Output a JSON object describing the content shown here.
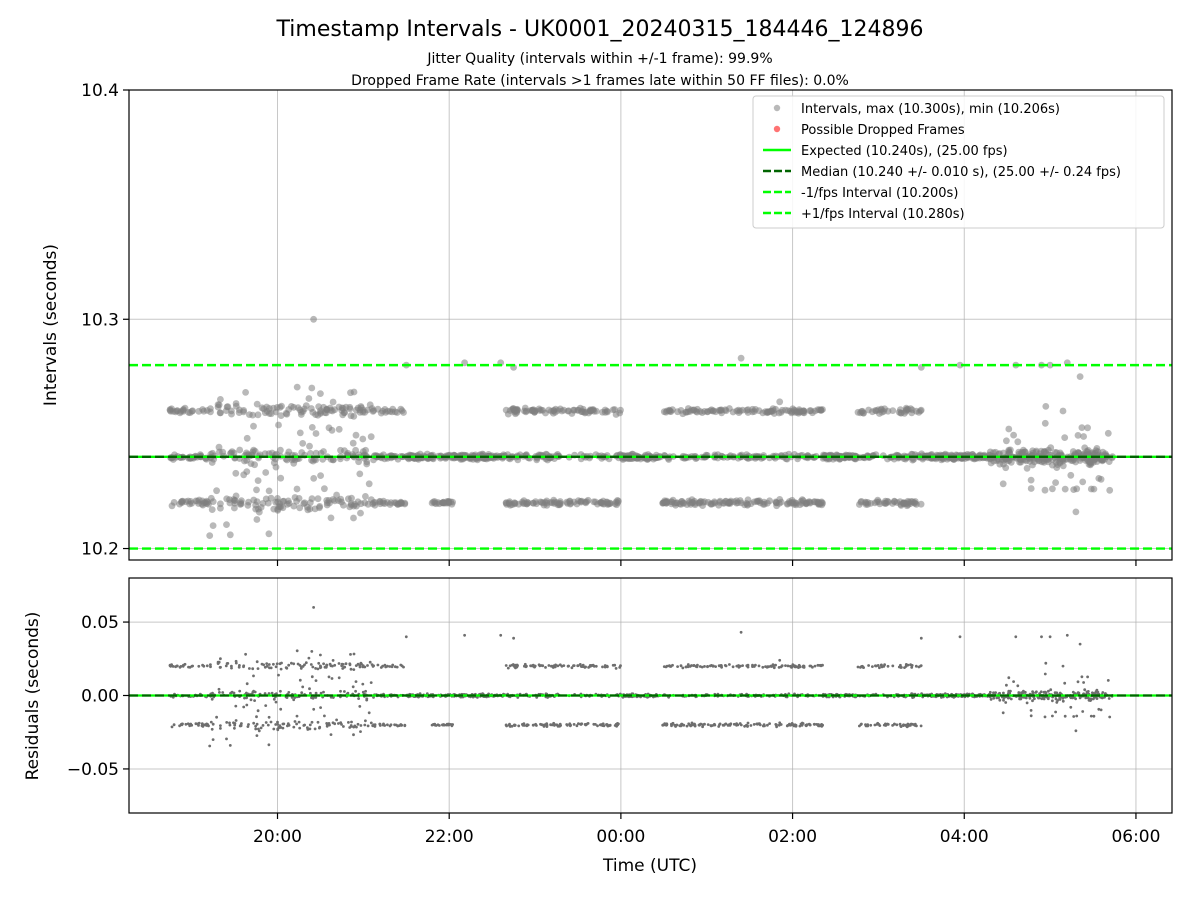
{
  "chart_data": {
    "type": "scatter",
    "title": "Timestamp Intervals - UK0001_20240315_184446_124896",
    "subtitle_lines": [
      "Jitter Quality (intervals within +/-1 frame): 99.9%",
      "Dropped Frame Rate (intervals >1 frames late within 50 FF files): 0.0%"
    ],
    "top_panel": {
      "ylabel": "Intervals (seconds)",
      "ylim": [
        10.195,
        10.4
      ],
      "yticks": [
        10.2,
        10.3,
        10.4
      ],
      "ytick_labels": [
        "10.2",
        "10.3",
        "10.4"
      ],
      "grid": true,
      "reference_lines": [
        {
          "name": "expected",
          "y": 10.24,
          "color": "#00ff00",
          "style": "solid"
        },
        {
          "name": "median",
          "y": 10.24,
          "color": "#006400",
          "style": "dashed"
        },
        {
          "name": "minus-one-fps",
          "y": 10.2,
          "color": "#00ff00",
          "style": "dashed"
        },
        {
          "name": "plus-one-fps",
          "y": 10.28,
          "color": "#00ff00",
          "style": "dashed"
        }
      ],
      "legend": {
        "placement": "top-right",
        "entries": [
          {
            "label": "Intervals, max (10.300s), min (10.206s)",
            "kind": "marker",
            "color": "#808080"
          },
          {
            "label": "Possible Dropped Frames",
            "kind": "marker",
            "color": "#ff0000"
          },
          {
            "label": "Expected (10.240s), (25.00 fps)",
            "kind": "line",
            "color": "#00ff00",
            "dash": false
          },
          {
            "label": "Median (10.240 +/- 0.010 s), (25.00 +/- 0.24 fps)",
            "kind": "line",
            "color": "#006400",
            "dash": true
          },
          {
            "label": "-1/fps Interval (10.200s)",
            "kind": "line",
            "color": "#00ff00",
            "dash": true
          },
          {
            "label": "+1/fps Interval (10.280s)",
            "kind": "line",
            "color": "#00ff00",
            "dash": true
          }
        ]
      }
    },
    "bottom_panel": {
      "ylabel": "Residuals (seconds)",
      "ylim": [
        -0.08,
        0.08
      ],
      "yticks": [
        0.05,
        0.0,
        -0.05
      ],
      "ytick_labels": [
        "0.05",
        "0.00",
        "−0.05"
      ],
      "grid": true,
      "reference_lines": [
        {
          "name": "zero",
          "y": 0.0,
          "color": "#00ff00",
          "style": "solid"
        },
        {
          "name": "median-zero",
          "y": 0.0,
          "color": "#006400",
          "style": "dashed"
        }
      ]
    },
    "xlabel": "Time (UTC)",
    "x_unit": "hours of 2024-03-15 (values above 24 are on 2024-03-16)",
    "xlim": [
      18.27,
      30.42
    ],
    "xticks": [
      20,
      22,
      24,
      26,
      28,
      30
    ],
    "xtick_labels": [
      "20:00",
      "22:00",
      "00:00",
      "02:00",
      "04:00",
      "06:00"
    ],
    "data_span": {
      "start_hour": 18.74,
      "end_hour": 29.74
    },
    "bands": [
      10.22,
      10.24,
      10.26
    ],
    "segments": [
      {
        "start": 18.74,
        "end": 19.2,
        "bands": [
          10.22,
          10.24,
          10.26
        ]
      },
      {
        "start": 19.2,
        "end": 21.1,
        "bands": [
          10.22,
          10.24,
          10.26
        ],
        "scattered": true
      },
      {
        "start": 21.1,
        "end": 21.5,
        "bands": [
          10.22,
          10.24,
          10.26
        ]
      },
      {
        "start": 21.5,
        "end": 21.8,
        "bands": [
          10.24
        ]
      },
      {
        "start": 21.8,
        "end": 22.05,
        "bands": [
          10.22,
          10.24
        ]
      },
      {
        "start": 22.05,
        "end": 22.65,
        "bands": [
          10.24
        ]
      },
      {
        "start": 22.65,
        "end": 24.0,
        "bands": [
          10.22,
          10.24,
          10.26
        ]
      },
      {
        "start": 24.0,
        "end": 24.45,
        "bands": [
          10.24
        ]
      },
      {
        "start": 24.45,
        "end": 26.35,
        "bands": [
          10.22,
          10.24,
          10.26
        ]
      },
      {
        "start": 26.35,
        "end": 26.75,
        "bands": [
          10.24
        ]
      },
      {
        "start": 26.75,
        "end": 27.5,
        "bands": [
          10.22,
          10.24,
          10.26
        ]
      },
      {
        "start": 27.5,
        "end": 28.3,
        "bands": [
          10.24
        ]
      },
      {
        "start": 28.3,
        "end": 29.74,
        "bands": [
          10.24
        ],
        "scattered": true
      }
    ],
    "outliers": [
      {
        "x": 20.42,
        "y": 10.3
      },
      {
        "x": 20.4,
        "y": 10.27
      },
      {
        "x": 19.45,
        "y": 10.206
      },
      {
        "x": 19.25,
        "y": 10.21
      },
      {
        "x": 21.5,
        "y": 10.28
      },
      {
        "x": 22.18,
        "y": 10.281
      },
      {
        "x": 22.6,
        "y": 10.281
      },
      {
        "x": 22.75,
        "y": 10.279
      },
      {
        "x": 25.4,
        "y": 10.283
      },
      {
        "x": 25.85,
        "y": 10.264
      },
      {
        "x": 27.5,
        "y": 10.279
      },
      {
        "x": 27.95,
        "y": 10.28
      },
      {
        "x": 28.6,
        "y": 10.28
      },
      {
        "x": 28.9,
        "y": 10.28
      },
      {
        "x": 29.0,
        "y": 10.28
      },
      {
        "x": 29.2,
        "y": 10.281
      },
      {
        "x": 29.35,
        "y": 10.275
      },
      {
        "x": 29.3,
        "y": 10.216
      },
      {
        "x": 29.15,
        "y": 10.26
      },
      {
        "x": 28.95,
        "y": 10.262
      }
    ]
  }
}
